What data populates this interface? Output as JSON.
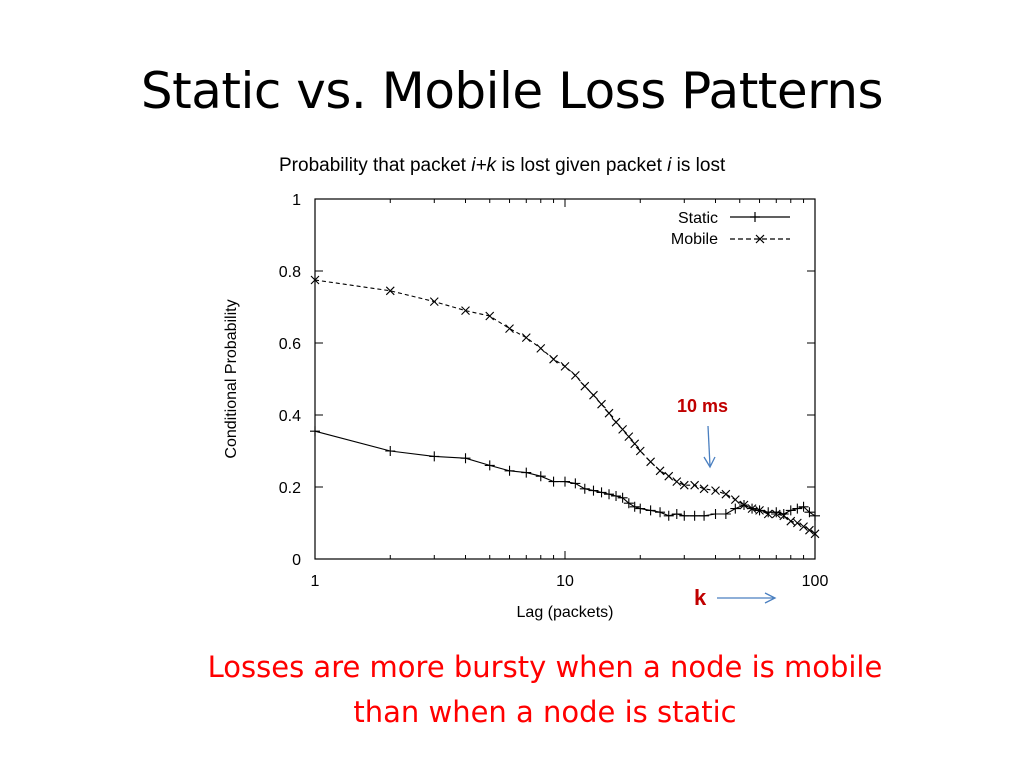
{
  "slide": {
    "title": "Static vs. Mobile Loss Patterns",
    "subtitle_parts": [
      "Probability that packet ",
      "i+k",
      " is lost given packet ",
      "i",
      " is lost"
    ],
    "conclusion_line1": "Losses are more bursty when a node is mobile",
    "conclusion_line2": "than when a node is static",
    "accent_color": "#ff0000",
    "annotation_color": "#c00000",
    "arrow_color": "#4a7fc0"
  },
  "annotations": {
    "ms_label": "10 ms",
    "k_label": "k"
  },
  "chart_data": {
    "type": "line",
    "xscale": "log",
    "xlabel": "Lag (packets)",
    "ylabel": "Conditional Probability",
    "xlim": [
      1,
      100
    ],
    "ylim": [
      0,
      1
    ],
    "x_ticks": [
      "1",
      "10",
      "100"
    ],
    "y_ticks": [
      "0",
      "0.2",
      "0.4",
      "0.6",
      "0.8",
      "1"
    ],
    "legend_position": "top-right",
    "grid": false,
    "series": [
      {
        "name": "Static",
        "marker": "+",
        "line": "solid",
        "x": [
          1,
          2,
          3,
          4,
          5,
          6,
          7,
          8,
          9,
          10,
          11,
          12,
          13,
          14,
          15,
          16,
          17,
          18,
          19,
          20,
          22,
          24,
          26,
          28,
          30,
          33,
          36,
          40,
          44,
          48,
          52,
          56,
          60,
          65,
          70,
          75,
          80,
          85,
          90,
          95,
          100
        ],
        "y": [
          0.355,
          0.3,
          0.285,
          0.28,
          0.26,
          0.245,
          0.24,
          0.23,
          0.215,
          0.215,
          0.21,
          0.195,
          0.19,
          0.185,
          0.18,
          0.175,
          0.17,
          0.155,
          0.145,
          0.14,
          0.135,
          0.13,
          0.12,
          0.125,
          0.12,
          0.12,
          0.12,
          0.125,
          0.125,
          0.14,
          0.15,
          0.14,
          0.135,
          0.13,
          0.13,
          0.125,
          0.135,
          0.14,
          0.145,
          0.13,
          0.12
        ]
      },
      {
        "name": "Mobile",
        "marker": "x",
        "line": "dashed",
        "x": [
          1,
          2,
          3,
          4,
          5,
          6,
          7,
          8,
          9,
          10,
          11,
          12,
          13,
          14,
          15,
          16,
          17,
          18,
          19,
          20,
          22,
          24,
          26,
          28,
          30,
          33,
          36,
          40,
          44,
          48,
          52,
          56,
          60,
          65,
          70,
          75,
          80,
          85,
          90,
          95,
          100
        ],
        "y": [
          0.775,
          0.745,
          0.715,
          0.69,
          0.675,
          0.64,
          0.615,
          0.585,
          0.555,
          0.535,
          0.51,
          0.48,
          0.455,
          0.43,
          0.405,
          0.38,
          0.36,
          0.34,
          0.32,
          0.3,
          0.27,
          0.245,
          0.23,
          0.215,
          0.205,
          0.205,
          0.195,
          0.19,
          0.18,
          0.165,
          0.15,
          0.14,
          0.135,
          0.125,
          0.125,
          0.12,
          0.105,
          0.1,
          0.09,
          0.08,
          0.07
        ]
      }
    ]
  }
}
